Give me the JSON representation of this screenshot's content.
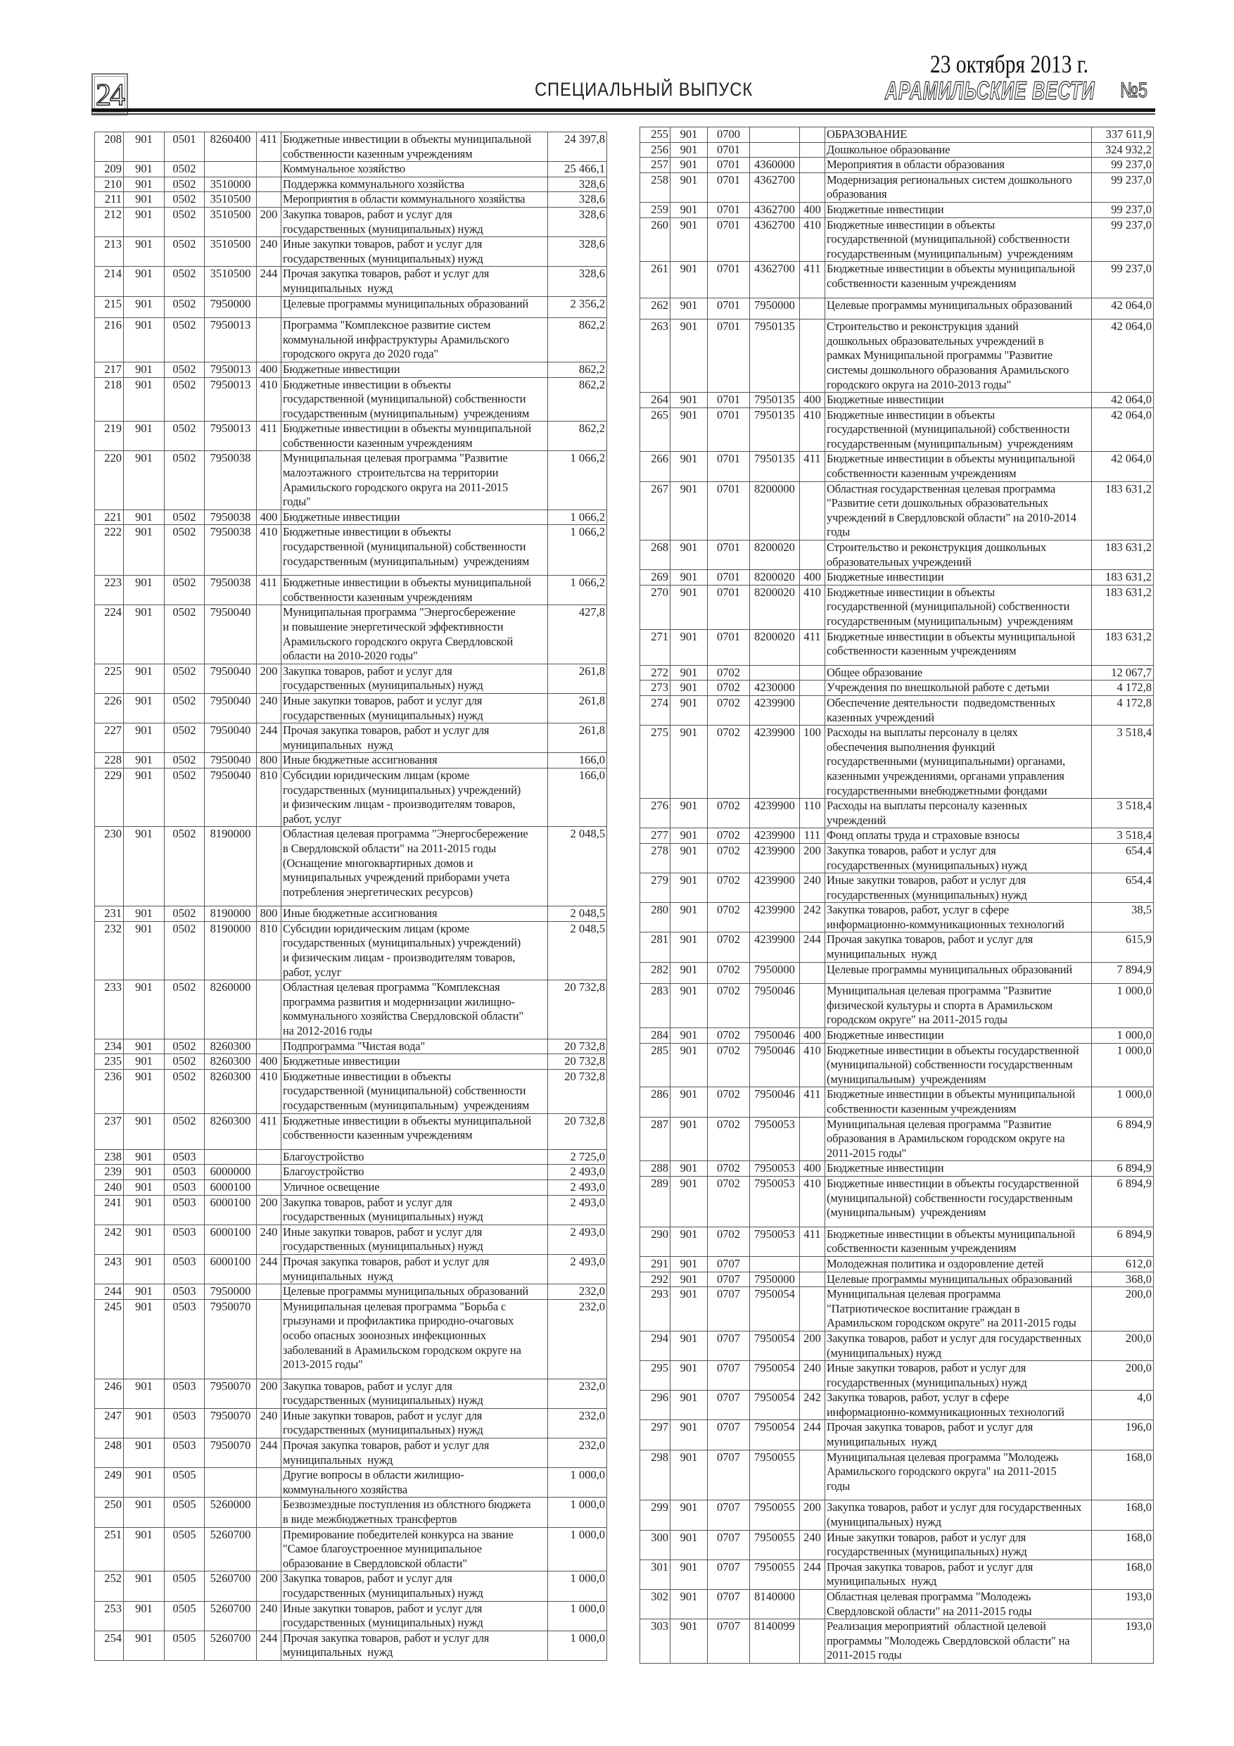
{
  "header": {
    "page_number": "24",
    "section": "СПЕЦИАЛЬНЫЙ ВЫПУСК",
    "date": "23 октября 2013 г.",
    "newspaper": "АРАМИЛЬСКИЕ ВЕСТИ",
    "issue": "№5"
  },
  "left_table": {
    "rows": [
      [
        "208",
        "901",
        "0501",
        "8260400",
        "411",
        "Бюджетные инвестиции в объекты муниципальной\nсобственности казенным учреждениям",
        "24 397,8"
      ],
      [
        "209",
        "901",
        "0502",
        "",
        "",
        "Коммунальное хозяйство",
        "25 466,1"
      ],
      [
        "210",
        "901",
        "0502",
        "3510000",
        "",
        "Поддержка коммунального хозяйства",
        "328,6"
      ],
      [
        "211",
        "901",
        "0502",
        "3510500",
        "",
        "Мероприятия в области коммунального хозяйства",
        "328,6"
      ],
      [
        "212",
        "901",
        "0502",
        "3510500",
        "200",
        "Закупка товаров, работ и услуг для\nгосударственных (муниципальных) нужд",
        "328,6"
      ],
      [
        "213",
        "901",
        "0502",
        "3510500",
        "240",
        "Иные закупки товаров, работ и услуг для\nгосударственных (муниципальных) нужд",
        "328,6"
      ],
      [
        "214",
        "901",
        "0502",
        "3510500",
        "244",
        "Прочая закупка товаров, работ и услуг для\nмуниципальных  нужд",
        "328,6"
      ],
      [
        "215",
        "901",
        "0502",
        "7950000",
        "",
        "Целевые программы муниципальных образований",
        "2 356,2"
      ],
      [
        "216",
        "901",
        "0502",
        "7950013",
        "",
        "Программа \"Комплексное развитие систем\nкоммунальной инфраструктуры Арамильского\nгородского округа до 2020 года\"",
        "862,2"
      ],
      [
        "217",
        "901",
        "0502",
        "7950013",
        "400",
        "Бюджетные инвестиции",
        "862,2"
      ],
      [
        "218",
        "901",
        "0502",
        "7950013",
        "410",
        "Бюджетные инвестиции в объекты\nгосударственной (муниципальной) собственности\nгосударственным (муниципальным)  учреждениям",
        "862,2"
      ],
      [
        "219",
        "901",
        "0502",
        "7950013",
        "411",
        "Бюджетные инвестиции в объекты муниципальной\nсобственности казенным учреждениям",
        "862,2"
      ],
      [
        "220",
        "901",
        "0502",
        "7950038",
        "",
        "Муниципальная целевая программа \"Развитие\nмалоэтажного  строительтсва на территории\nАрамильского городского округа на 2011-2015\nгоды\"",
        "1 066,2"
      ],
      [
        "221",
        "901",
        "0502",
        "7950038",
        "400",
        "Бюджетные инвестиции",
        "1 066,2"
      ],
      [
        "222",
        "901",
        "0502",
        "7950038",
        "410",
        "Бюджетные инвестиции в объекты\nгосударственной (муниципальной) собственности\nгосударственным (муниципальным)  учреждениям",
        "1 066,2"
      ],
      [
        "223",
        "901",
        "0502",
        "7950038",
        "411",
        "Бюджетные инвестиции в объекты муниципальной\nсобственности казенным учреждениям",
        "1 066,2"
      ],
      [
        "224",
        "901",
        "0502",
        "7950040",
        "",
        "Муниципальная программа \"Энергосбережение\nи повышение энергетической эффективности\nАрамильского городского округа Свердловской\nобласти на 2010-2020 годы\"",
        "427,8"
      ],
      [
        "225",
        "901",
        "0502",
        "7950040",
        "200",
        "Закупка товаров, работ и услуг для\nгосударственных (муниципальных) нужд",
        "261,8"
      ],
      [
        "226",
        "901",
        "0502",
        "7950040",
        "240",
        "Иные закупки товаров, работ и услуг для\nгосударственных (муниципальных) нужд",
        "261,8"
      ],
      [
        "227",
        "901",
        "0502",
        "7950040",
        "244",
        "Прочая закупка товаров, работ и услуг для\nмуниципальных  нужд",
        "261,8"
      ],
      [
        "228",
        "901",
        "0502",
        "7950040",
        "800",
        "Иные бюджетные ассигнования",
        "166,0"
      ],
      [
        "229",
        "901",
        "0502",
        "7950040",
        "810",
        "Субсидии юридическим лицам (кроме\nгосударственных (муниципальных) учреждений)\nи физическим лицам - производителям товаров,\nработ, услуг",
        "166,0"
      ],
      [
        "230",
        "901",
        "0502",
        "8190000",
        "",
        "Областная целевая программа \"Энергосбережение\nв Свердловской области\" на 2011-2015 годы\n(Оснащение многоквартирных домов и\nмуниципальных учреждений приборами учета\nпотребления энергетических ресурсов)",
        "2 048,5"
      ],
      [
        "231",
        "901",
        "0502",
        "8190000",
        "800",
        "Иные бюджетные ассигнования",
        "2 048,5"
      ],
      [
        "232",
        "901",
        "0502",
        "8190000",
        "810",
        "Субсидии юридическим лицам (кроме\nгосударственных (муниципальных) учреждений)\nи физическим лицам - производителям товаров,\nработ, услуг",
        "2 048,5"
      ],
      [
        "233",
        "901",
        "0502",
        "8260000",
        "",
        "Областная целевая программа \"Комплексная\nпрограмма развития и модернизации жилищно-\nкоммунального хозяйства Свердловской области\"\nна 2012-2016 годы",
        "20 732,8"
      ],
      [
        "234",
        "901",
        "0502",
        "8260300",
        "",
        "Подпрограмма \"Чистая вода\"",
        "20 732,8"
      ],
      [
        "235",
        "901",
        "0502",
        "8260300",
        "400",
        "Бюджетные инвестиции",
        "20 732,8"
      ],
      [
        "236",
        "901",
        "0502",
        "8260300",
        "410",
        "Бюджетные инвестиции в объекты\nгосударственной (муниципальной) собственности\nгосударственным (муниципальным)  учреждениям",
        "20 732,8"
      ],
      [
        "237",
        "901",
        "0502",
        "8260300",
        "411",
        "Бюджетные инвестиции в объекты муниципальной\nсобственности казенным учреждениям",
        "20 732,8"
      ],
      [
        "238",
        "901",
        "0503",
        "",
        "",
        "Благоустройство",
        "2 725,0"
      ],
      [
        "239",
        "901",
        "0503",
        "6000000",
        "",
        "Благоустройство",
        "2 493,0"
      ],
      [
        "240",
        "901",
        "0503",
        "6000100",
        "",
        "Уличное освещение",
        "2 493,0"
      ],
      [
        "241",
        "901",
        "0503",
        "6000100",
        "200",
        "Закупка товаров, работ и услуг для\nгосударственных (муниципальных) нужд",
        "2 493,0"
      ],
      [
        "242",
        "901",
        "0503",
        "6000100",
        "240",
        "Иные закупки товаров, работ и услуг для\nгосударственных (муниципальных) нужд",
        "2 493,0"
      ],
      [
        "243",
        "901",
        "0503",
        "6000100",
        "244",
        "Прочая закупка товаров, работ и услуг для\nмуниципальных  нужд",
        "2 493,0"
      ],
      [
        "244",
        "901",
        "0503",
        "7950000",
        "",
        "Целевые программы муниципальных образований",
        "232,0"
      ],
      [
        "245",
        "901",
        "0503",
        "7950070",
        "",
        "Муниципальная целевая программа \"Борьба с\nгрызунами и профилактика природно-очаговых\nособо опасных зоонозных инфекционных\nзаболеваний в Арамильском городском округе на\n2013-2015 годы\"",
        "232,0"
      ],
      [
        "246",
        "901",
        "0503",
        "7950070",
        "200",
        "Закупка товаров, работ и услуг для\nгосударственных (муниципальных) нужд",
        "232,0"
      ],
      [
        "247",
        "901",
        "0503",
        "7950070",
        "240",
        "Иные закупки товаров, работ и услуг для\nгосударственных (муниципальных) нужд",
        "232,0"
      ],
      [
        "248",
        "901",
        "0503",
        "7950070",
        "244",
        "Прочая закупка товаров, работ и услуг для\nмуниципальных  нужд",
        "232,0"
      ],
      [
        "249",
        "901",
        "0505",
        "",
        "",
        "Другие вопросы в области жилищно-\nкоммунального хозяйства",
        "1 000,0"
      ],
      [
        "250",
        "901",
        "0505",
        "5260000",
        "",
        "Безвозмездные поступления из облстного бюджета\nв виде межбюджетных трансфертов",
        "1 000,0"
      ],
      [
        "251",
        "901",
        "0505",
        "5260700",
        "",
        "Премирование победителей конкурса на звание\n\"Самое благоустроенное муниципальное\nобразование в Свердловской области\"",
        "1 000,0"
      ],
      [
        "252",
        "901",
        "0505",
        "5260700",
        "200",
        "Закупка товаров, работ и услуг для\nгосударственных (муниципальных) нужд",
        "1 000,0"
      ],
      [
        "253",
        "901",
        "0505",
        "5260700",
        "240",
        "Иные закупки товаров, работ и услуг для\nгосударственных (муниципальных) нужд",
        "1 000,0"
      ],
      [
        "254",
        "901",
        "0505",
        "5260700",
        "244",
        "Прочая закупка товаров, работ и услуг для\nмуниципальных  нужд",
        "1 000,0"
      ]
    ]
  },
  "right_table": {
    "rows": [
      [
        "255",
        "901",
        "0700",
        "",
        "",
        "ОБРАЗОВАНИЕ",
        "337 611,9"
      ],
      [
        "256",
        "901",
        "0701",
        "",
        "",
        "Дошкольное образование",
        "324 932,2"
      ],
      [
        "257",
        "901",
        "0701",
        "4360000",
        "",
        "Мероприятия в области образования",
        "99 237,0"
      ],
      [
        "258",
        "901",
        "0701",
        "4362700",
        "",
        "Модернизация региональных систем дошкольного\nобразования",
        "99 237,0"
      ],
      [
        "259",
        "901",
        "0701",
        "4362700",
        "400",
        "Бюджетные инвестиции",
        "99 237,0"
      ],
      [
        "260",
        "901",
        "0701",
        "4362700",
        "410",
        "Бюджетные инвестиции в объекты\nгосударственной (муниципальной) собственности\nгосударственным (муниципальным)  учреждениям",
        "99 237,0"
      ],
      [
        "261",
        "901",
        "0701",
        "4362700",
        "411",
        "Бюджетные инвестиции в объекты муниципальной\nсобственности казенным учреждениям",
        "99 237,0"
      ],
      [
        "262",
        "901",
        "0701",
        "7950000",
        "",
        "Целевые программы муниципальных образований",
        "42 064,0"
      ],
      [
        "263",
        "901",
        "0701",
        "7950135",
        "",
        "Строительство и реконструкция зданий\nдошкольных образовательных учреждений в\nрамках Муниципальной программы \"Развитие\nсистемы дошкольного образования Арамильского\nгородского округа на 2010-2013 годы\"",
        "42 064,0"
      ],
      [
        "264",
        "901",
        "0701",
        "7950135",
        "400",
        "Бюджетные инвестиции",
        "42 064,0"
      ],
      [
        "265",
        "901",
        "0701",
        "7950135",
        "410",
        "Бюджетные инвестиции в объекты\nгосударственной (муниципальной) собственности\nгосударственным (муниципальным)  учреждениям",
        "42 064,0"
      ],
      [
        "266",
        "901",
        "0701",
        "7950135",
        "411",
        "Бюджетные инвестиции в объекты муниципальной\nсобственности казенным учреждениям",
        "42 064,0"
      ],
      [
        "267",
        "901",
        "0701",
        "8200000",
        "",
        "Областная государственная целевая программа\n\"Развитие сети дошкольных образовательных\nучреждений в Свердловской области\" на 2010-2014\nгоды",
        "183 631,2"
      ],
      [
        "268",
        "901",
        "0701",
        "8200020",
        "",
        "Строительство и реконструкция дошкольных\nобразовательных учреждений",
        "183 631,2"
      ],
      [
        "269",
        "901",
        "0701",
        "8200020",
        "400",
        "Бюджетные инвестиции",
        "183 631,2"
      ],
      [
        "270",
        "901",
        "0701",
        "8200020",
        "410",
        "Бюджетные инвестиции в объекты\nгосударственной (муниципальной) собственности\nгосударственным (муниципальным)  учреждениям",
        "183 631,2"
      ],
      [
        "271",
        "901",
        "0701",
        "8200020",
        "411",
        "Бюджетные инвестиции в объекты муниципальной\nсобственности казенным учреждениям",
        "183 631,2"
      ],
      [
        "272",
        "901",
        "0702",
        "",
        "",
        "Общее образование",
        "12 067,7"
      ],
      [
        "273",
        "901",
        "0702",
        "4230000",
        "",
        "Учреждения по внешкольной работе с детьми",
        "4 172,8"
      ],
      [
        "274",
        "901",
        "0702",
        "4239900",
        "",
        "Обеспечение деятельности  подведомственных\nказенных учреждений",
        "4 172,8"
      ],
      [
        "275",
        "901",
        "0702",
        "4239900",
        "100",
        "Расходы на выплаты персоналу в целях\nобеспечения выполнения функций\nгосударственными (муниципальными) органами,\nказенными учреждениями, органами управления\nгосударственными внебюджетными фондами",
        "3 518,4"
      ],
      [
        "276",
        "901",
        "0702",
        "4239900",
        "110",
        "Расходы на выплаты персоналу казенных\nучреждений",
        "3 518,4"
      ],
      [
        "277",
        "901",
        "0702",
        "4239900",
        "111",
        "Фонд оплаты труда и страховые взносы",
        "3 518,4"
      ],
      [
        "278",
        "901",
        "0702",
        "4239900",
        "200",
        "Закупка товаров, работ и услуг для\nгосударственных (муниципальных) нужд",
        "654,4"
      ],
      [
        "279",
        "901",
        "0702",
        "4239900",
        "240",
        "Иные закупки товаров, работ и услуг для\nгосударственных (муниципальных) нужд",
        "654,4"
      ],
      [
        "280",
        "901",
        "0702",
        "4239900",
        "242",
        "Закупка товаров, работ, услуг в сфере\nинформационно-коммуникационных технологий",
        "38,5"
      ],
      [
        "281",
        "901",
        "0702",
        "4239900",
        "244",
        "Прочая закупка товаров, работ и услуг для\nмуниципальных  нужд",
        "615,9"
      ],
      [
        "282",
        "901",
        "0702",
        "7950000",
        "",
        "Целевые программы муниципальных образований",
        "7 894,9"
      ],
      [
        "283",
        "901",
        "0702",
        "7950046",
        "",
        "Муниципальная целевая программа \"Развитие\nфизической культуры и спорта в Арамильском\nгородском округе\" на 2011-2015 годы",
        "1 000,0"
      ],
      [
        "284",
        "901",
        "0702",
        "7950046",
        "400",
        "Бюджетные инвестиции",
        "1 000,0"
      ],
      [
        "285",
        "901",
        "0702",
        "7950046",
        "410",
        "Бюджетные инвестиции в объекты государственной\n(муниципальной) собственности государственным\n(муниципальным)  учреждениям",
        "1 000,0"
      ],
      [
        "286",
        "901",
        "0702",
        "7950046",
        "411",
        "Бюджетные инвестиции в объекты муниципальной\nсобственности казенным учреждениям",
        "1 000,0"
      ],
      [
        "287",
        "901",
        "0702",
        "7950053",
        "",
        "Муниципальная целевая программа \"Развитие\nобразования в Арамильском городском округе на\n2011-2015 годы\"",
        "6 894,9"
      ],
      [
        "288",
        "901",
        "0702",
        "7950053",
        "400",
        "Бюджетные инвестиции",
        "6 894,9"
      ],
      [
        "289",
        "901",
        "0702",
        "7950053",
        "410",
        "Бюджетные инвестиции в объекты государственной\n(муниципальной) собственности государственным\n(муниципальным)  учреждениям",
        "6 894,9"
      ],
      [
        "290",
        "901",
        "0702",
        "7950053",
        "411",
        "Бюджетные инвестиции в объекты муниципальной\nсобственности казенным учреждениям",
        "6 894,9"
      ],
      [
        "291",
        "901",
        "0707",
        "",
        "",
        "Молодежная политика и оздоровление детей",
        "612,0"
      ],
      [
        "292",
        "901",
        "0707",
        "7950000",
        "",
        "Целевые программы муниципальных образований",
        "368,0"
      ],
      [
        "293",
        "901",
        "0707",
        "7950054",
        "",
        "Муниципальная целевая программа\n\"Патриотическое воспитание граждан в\nАрамильском городском округе\" на 2011-2015 годы",
        "200,0"
      ],
      [
        "294",
        "901",
        "0707",
        "7950054",
        "200",
        "Закупка товаров, работ и услуг для государственных\n(муниципальных) нужд",
        "200,0"
      ],
      [
        "295",
        "901",
        "0707",
        "7950054",
        "240",
        "Иные закупки товаров, работ и услуг для\nгосударственных (муниципальных) нужд",
        "200,0"
      ],
      [
        "296",
        "901",
        "0707",
        "7950054",
        "242",
        "Закупка товаров, работ, услуг в сфере\nинформационно-коммуникационных технологий",
        "4,0"
      ],
      [
        "297",
        "901",
        "0707",
        "7950054",
        "244",
        "Прочая закупка товаров, работ и услуг для\nмуниципальных  нужд",
        "196,0"
      ],
      [
        "298",
        "901",
        "0707",
        "7950055",
        "",
        "Муниципальная целевая программа \"Молодежь\nАрамильского городского округа\" на 2011-2015\nгоды",
        "168,0"
      ],
      [
        "299",
        "901",
        "0707",
        "7950055",
        "200",
        "Закупка товаров, работ и услуг для государственных\n(муниципальных) нужд",
        "168,0"
      ],
      [
        "300",
        "901",
        "0707",
        "7950055",
        "240",
        "Иные закупки товаров, работ и услуг для\nгосударственных (муниципальных) нужд",
        "168,0"
      ],
      [
        "301",
        "901",
        "0707",
        "7950055",
        "244",
        "Прочая закупка товаров, работ и услуг для\nмуниципальных  нужд",
        "168,0"
      ],
      [
        "302",
        "901",
        "0707",
        "8140000",
        "",
        "Областная целевая программа \"Молодежь\nСвердловской области\" на 2011-2015 годы",
        "193,0"
      ],
      [
        "303",
        "901",
        "0707",
        "8140099",
        "",
        "Реализация мероприятий  областной целевой\nпрограммы \"Молодежь Свердловской области\" на\n2011-2015 годы",
        "193,0"
      ]
    ]
  }
}
